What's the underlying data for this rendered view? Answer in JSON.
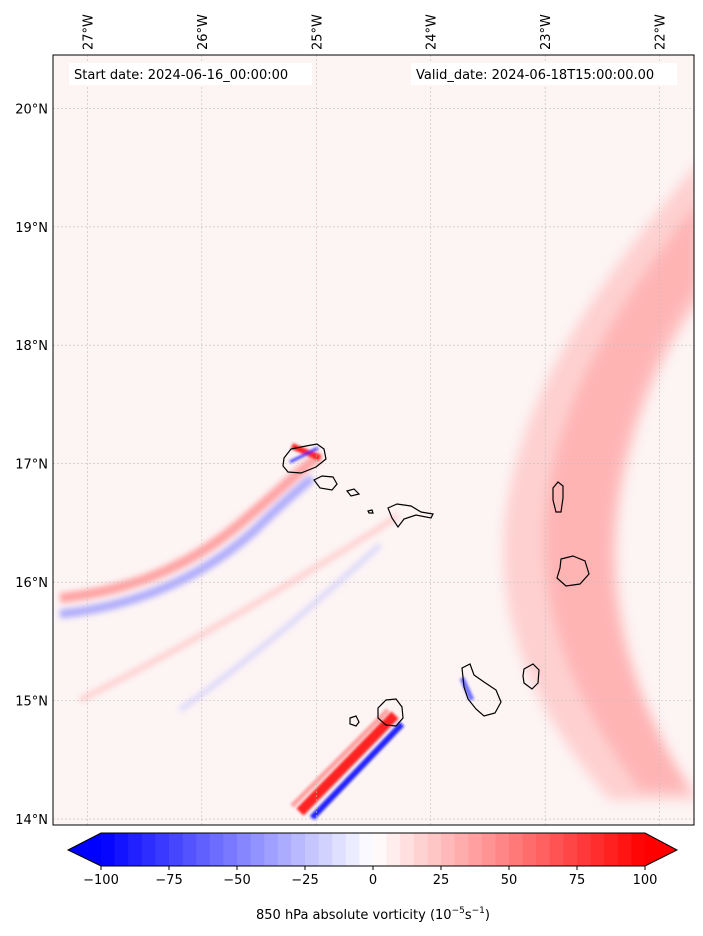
{
  "map": {
    "start_label": "Start date: 2024-06-16_00:00:00",
    "valid_label": "Valid_date: 2024-06-18T15:00:00.00",
    "field": "850 hPa absolute vorticity",
    "longitude_labels": [
      "27°W",
      "26°W",
      "25°W",
      "24°W",
      "23°W",
      "22°W"
    ],
    "latitude_labels": [
      "20°N",
      "19°N",
      "18°N",
      "17°N",
      "16°N",
      "15°N",
      "14°N"
    ],
    "extent": {
      "lon_min": -27.3,
      "lon_max": -21.7,
      "lat_min": 13.95,
      "lat_max": 20.45
    },
    "gridlines": true,
    "grid_lons": [
      -27,
      -26,
      -25,
      -24,
      -23,
      -22
    ],
    "grid_lats": [
      20,
      19,
      18,
      17,
      16,
      15,
      14
    ],
    "colormap": "bwr",
    "islands": [
      "Santo Antão",
      "São Vicente",
      "Santa Luzia",
      "Branco",
      "São Nicolau",
      "Sal",
      "Boa Vista",
      "Maio",
      "Santiago",
      "Fogo",
      "Brava"
    ]
  },
  "colorbar": {
    "label_text": "850 hPa absolute vorticity (10",
    "label_exp1": "−5",
    "label_mid": "s",
    "label_exp2": "−1",
    "label_close": ")",
    "min": -100,
    "max": 100,
    "extend": "both",
    "ticks": [
      -100,
      -75,
      -50,
      -25,
      0,
      25,
      50,
      75,
      100
    ],
    "tick_labels": [
      "−100",
      "−75",
      "−50",
      "−25",
      "0",
      "25",
      "50",
      "75",
      "100"
    ],
    "color_min": "#0000ff",
    "color_mid": "#ffffff",
    "color_max": "#ff0000"
  }
}
